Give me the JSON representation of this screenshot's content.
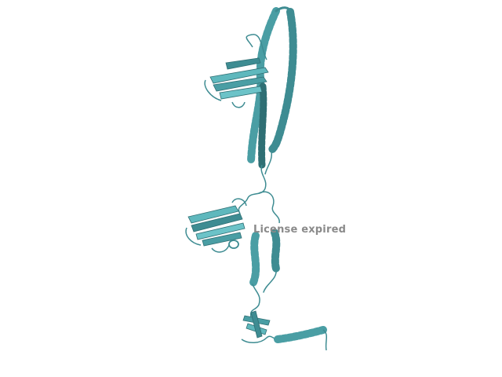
{
  "render": {
    "background": "#ffffff",
    "style": "cartoon ribbon",
    "colors": {
      "ribbon_light": "#5fb8bd",
      "ribbon_mid": "#4a9ea4",
      "ribbon_dark": "#2f6f74",
      "loop": "#3e8c92"
    }
  },
  "watermark": {
    "text": "License expired",
    "color": "#8a8a8a"
  }
}
